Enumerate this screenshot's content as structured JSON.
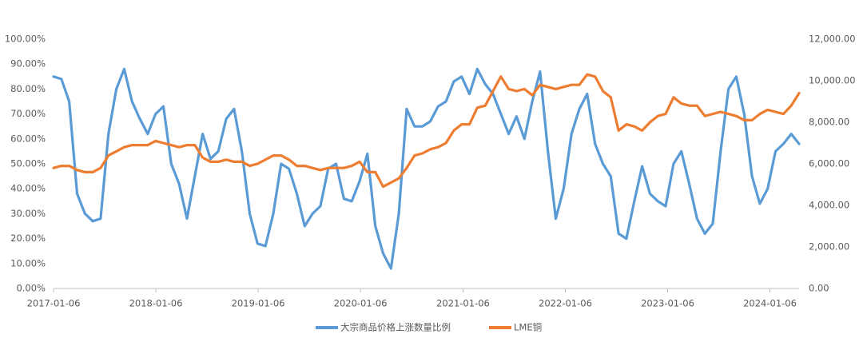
{
  "chart_data": {
    "type": "line",
    "x": [
      "2017-01-06",
      "2017-02-03",
      "2017-03-03",
      "2017-03-31",
      "2017-04-28",
      "2017-05-26",
      "2017-06-23",
      "2017-07-21",
      "2017-08-18",
      "2017-09-15",
      "2017-10-13",
      "2017-11-10",
      "2017-12-08",
      "2018-01-05",
      "2018-02-02",
      "2018-03-02",
      "2018-03-30",
      "2018-04-27",
      "2018-05-25",
      "2018-06-22",
      "2018-07-20",
      "2018-08-17",
      "2018-09-14",
      "2018-10-12",
      "2018-11-09",
      "2018-12-07",
      "2019-01-04",
      "2019-02-01",
      "2019-03-01",
      "2019-03-29",
      "2019-04-26",
      "2019-05-24",
      "2019-06-21",
      "2019-07-19",
      "2019-08-16",
      "2019-09-13",
      "2019-10-11",
      "2019-11-08",
      "2019-12-06",
      "2020-01-03",
      "2020-01-31",
      "2020-02-28",
      "2020-03-27",
      "2020-04-24",
      "2020-05-22",
      "2020-06-19",
      "2020-07-17",
      "2020-08-14",
      "2020-09-11",
      "2020-10-09",
      "2020-11-06",
      "2020-12-04",
      "2021-01-01",
      "2021-01-29",
      "2021-02-26",
      "2021-03-26",
      "2021-04-23",
      "2021-05-21",
      "2021-06-18",
      "2021-07-16",
      "2021-08-13",
      "2021-09-10",
      "2021-10-08",
      "2021-11-05",
      "2021-12-03",
      "2021-12-31",
      "2022-01-28",
      "2022-02-25",
      "2022-03-25",
      "2022-04-22",
      "2022-05-20",
      "2022-06-17",
      "2022-07-15",
      "2022-08-12",
      "2022-09-09",
      "2022-10-07",
      "2022-11-04",
      "2022-12-02",
      "2022-12-30",
      "2023-01-27",
      "2023-02-24",
      "2023-03-24",
      "2023-04-21",
      "2023-05-19",
      "2023-06-16",
      "2023-07-14",
      "2023-08-11",
      "2023-09-08",
      "2023-10-06",
      "2023-11-03",
      "2023-12-01",
      "2023-12-29",
      "2024-01-26",
      "2024-02-23",
      "2024-03-22",
      "2024-04-19"
    ],
    "series": [
      {
        "name": "大宗商品价格上涨数量比例",
        "color": "#5b9bd5",
        "axis": "y",
        "values": [
          85,
          84,
          75,
          38,
          30,
          27,
          28,
          62,
          80,
          88,
          75,
          68,
          62,
          70,
          73,
          50,
          42,
          28,
          45,
          62,
          52,
          55,
          68,
          72,
          55,
          30,
          18,
          17,
          30,
          50,
          48,
          38,
          25,
          30,
          33,
          48,
          50,
          36,
          35,
          43,
          54,
          25,
          14,
          8,
          30,
          72,
          65,
          65,
          67,
          73,
          75,
          83,
          85,
          78,
          88,
          82,
          78,
          70,
          62,
          69,
          60,
          75,
          87,
          55,
          28,
          40,
          62,
          72,
          78,
          58,
          50,
          45,
          22,
          20,
          35,
          49,
          38,
          35,
          33,
          50,
          55,
          42,
          28,
          22,
          26,
          55,
          80,
          85,
          70,
          45,
          34,
          40,
          55,
          58,
          62,
          58
        ]
      },
      {
        "name": "LME铜",
        "color": "#ed7d31",
        "axis": "y2",
        "values": [
          5800,
          5900,
          5900,
          5700,
          5600,
          5600,
          5800,
          6400,
          6600,
          6800,
          6900,
          6900,
          6900,
          7100,
          7000,
          6900,
          6800,
          6900,
          6900,
          6300,
          6100,
          6100,
          6200,
          6100,
          6100,
          5900,
          6000,
          6200,
          6400,
          6400,
          6200,
          5900,
          5900,
          5800,
          5700,
          5800,
          5800,
          5800,
          5900,
          6100,
          5600,
          5600,
          4900,
          5100,
          5300,
          5800,
          6400,
          6500,
          6700,
          6800,
          7000,
          7600,
          7900,
          7900,
          8700,
          8800,
          9500,
          10200,
          9600,
          9500,
          9600,
          9300,
          9800,
          9700,
          9600,
          9700,
          9800,
          9800,
          10300,
          10200,
          9500,
          9200,
          7600,
          7900,
          7800,
          7600,
          8000,
          8300,
          8400,
          9200,
          8900,
          8800,
          8800,
          8300,
          8400,
          8500,
          8400,
          8300,
          8100,
          8100,
          8400,
          8600,
          8500,
          8400,
          8800,
          9400
        ]
      }
    ],
    "xlim": [
      "2017-01-06",
      "2024-04-19"
    ],
    "xticks": [
      "2017-01-06",
      "2018-01-06",
      "2019-01-06",
      "2020-01-06",
      "2021-01-06",
      "2022-01-06",
      "2023-01-06",
      "2024-01-06"
    ],
    "ylim": [
      0,
      100
    ],
    "yticks": [
      {
        "value": 0,
        "label": "0.00%"
      },
      {
        "value": 10,
        "label": "10.00%"
      },
      {
        "value": 20,
        "label": "20.00%"
      },
      {
        "value": 30,
        "label": "30.00%"
      },
      {
        "value": 40,
        "label": "40.00%"
      },
      {
        "value": 50,
        "label": "50.00%"
      },
      {
        "value": 60,
        "label": "60.00%"
      },
      {
        "value": 70,
        "label": "70.00%"
      },
      {
        "value": 80,
        "label": "80.00%"
      },
      {
        "value": 90,
        "label": "90.00%"
      },
      {
        "value": 100,
        "label": "100.00%"
      }
    ],
    "y2lim": [
      0,
      12000
    ],
    "y2ticks": [
      {
        "value": 0,
        "label": "0.00"
      },
      {
        "value": 2000,
        "label": "2,000.00"
      },
      {
        "value": 4000,
        "label": "4,000.00"
      },
      {
        "value": 6000,
        "label": "6,000.00"
      },
      {
        "value": 8000,
        "label": "8,000.00"
      },
      {
        "value": 10000,
        "label": "10,000.00"
      },
      {
        "value": 12000,
        "label": "12,000.00"
      }
    ],
    "grid": false,
    "legend": "bottom"
  }
}
